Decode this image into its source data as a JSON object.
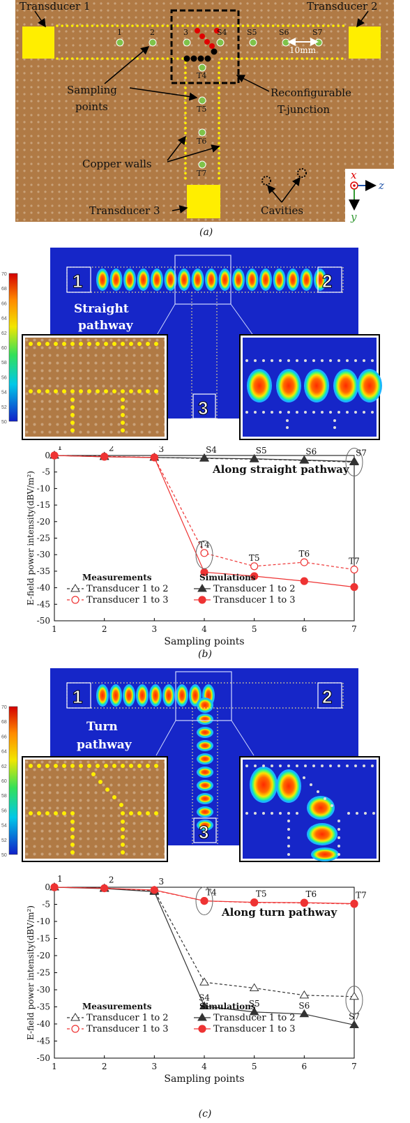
{
  "panel_a": {
    "transducer_1": "Transducer 1",
    "transducer_2": "Transducer 2",
    "transducer_3": "Transducer 3",
    "sampling_points": [
      "Sampling",
      "points"
    ],
    "reconfigurable": [
      "Reconfigurable",
      "T-junction"
    ],
    "copper_walls": "Copper walls",
    "cavities": "Cavities",
    "spacing": "10mm",
    "points_h": [
      "1",
      "2",
      "3",
      "S4",
      "S5",
      "S6",
      "S7"
    ],
    "points_v": [
      "T4",
      "T5",
      "T6",
      "T7"
    ],
    "axis_x": "x",
    "axis_z": "z",
    "axis_y": "y",
    "caption": "(a)"
  },
  "panel_b": {
    "pathway": [
      "Straight",
      "pathway"
    ],
    "ports": [
      "1",
      "2",
      "3"
    ],
    "colorbar_ticks": [
      "70",
      "68",
      "66",
      "64",
      "62",
      "60",
      "58",
      "56",
      "54",
      "52",
      "50"
    ],
    "caption": "(b)"
  },
  "panel_c": {
    "pathway": [
      "Turn",
      "pathway"
    ],
    "ports": [
      "1",
      "2",
      "3"
    ],
    "colorbar_ticks": [
      "70",
      "68",
      "66",
      "64",
      "62",
      "60",
      "58",
      "56",
      "54",
      "52",
      "50"
    ],
    "caption": "(c)"
  },
  "chart_data": [
    {
      "type": "line",
      "annotation": "Along straight pathway",
      "xlabel": "Sampling points",
      "ylabel": "E-field power intensity(dBV/m²)",
      "x": [
        1,
        2,
        3,
        4,
        5,
        6,
        7
      ],
      "xlim": [
        1,
        7
      ],
      "ylim": [
        -50,
        0
      ],
      "yticks": [
        0,
        -5,
        -10,
        -15,
        -20,
        -25,
        -30,
        -35,
        -40,
        -45,
        -50
      ],
      "point_labels_top": [
        "1",
        "2",
        "3",
        "S4",
        "S5",
        "S6",
        "S7"
      ],
      "point_labels_bottom": [
        "T4",
        "T5",
        "T6",
        "T7"
      ],
      "legend": {
        "measurements_title": "Measurements",
        "simulations_title": "Simulations"
      },
      "series": [
        {
          "name": "Transducer 1 to 2",
          "group": "Measurements",
          "values": [
            0,
            -0.3,
            -0.6,
            -0.9,
            -1.1,
            -1.5,
            -2.0
          ]
        },
        {
          "name": "Transducer 1 to 3",
          "group": "Measurements",
          "values": [
            0,
            -0.3,
            -0.6,
            -29.5,
            -33.5,
            -32.3,
            -34.5
          ]
        },
        {
          "name": "Transducer 1 to 2",
          "group": "Simulations",
          "values": [
            0,
            -0.4,
            -0.6,
            -0.8,
            -1.0,
            -1.4,
            -1.8
          ]
        },
        {
          "name": "Transducer 1 to 3",
          "group": "Simulations",
          "values": [
            0,
            -0.4,
            -0.6,
            -35.3,
            -36.5,
            -38.0,
            -39.8
          ]
        }
      ]
    },
    {
      "type": "line",
      "annotation": "Along turn pathway",
      "xlabel": "Sampling points",
      "ylabel": "E-field power intensity(dBV/m²)",
      "x": [
        1,
        2,
        3,
        4,
        5,
        6,
        7
      ],
      "xlim": [
        1,
        7
      ],
      "ylim": [
        -50,
        0
      ],
      "yticks": [
        0,
        -5,
        -10,
        -15,
        -20,
        -25,
        -30,
        -35,
        -40,
        -45,
        -50
      ],
      "point_labels_top": [
        "1",
        "2",
        "3",
        "T4",
        "T5",
        "T6",
        "T7"
      ],
      "point_labels_bottom": [
        "S4",
        "S5",
        "S6",
        "S7"
      ],
      "legend": {
        "measurements_title": "Measurements",
        "simulations_title": "Simulations"
      },
      "series": [
        {
          "name": "Transducer 1 to 2",
          "group": "Measurements",
          "values": [
            0,
            -0.3,
            -1.0,
            -27.8,
            -29.5,
            -31.6,
            -32.0
          ]
        },
        {
          "name": "Transducer 1 to 3",
          "group": "Measurements",
          "values": [
            0,
            -0.3,
            -0.9,
            -4.0,
            -4.5,
            -4.6,
            -4.9
          ]
        },
        {
          "name": "Transducer 1 to 2",
          "group": "Simulations",
          "values": [
            0,
            -0.4,
            -1.3,
            -34.8,
            -36.5,
            -37.1,
            -40.3
          ]
        },
        {
          "name": "Transducer 1 to 3",
          "group": "Simulations",
          "values": [
            0,
            -0.3,
            -0.8,
            -4.0,
            -4.4,
            -4.5,
            -4.8
          ]
        }
      ]
    }
  ]
}
